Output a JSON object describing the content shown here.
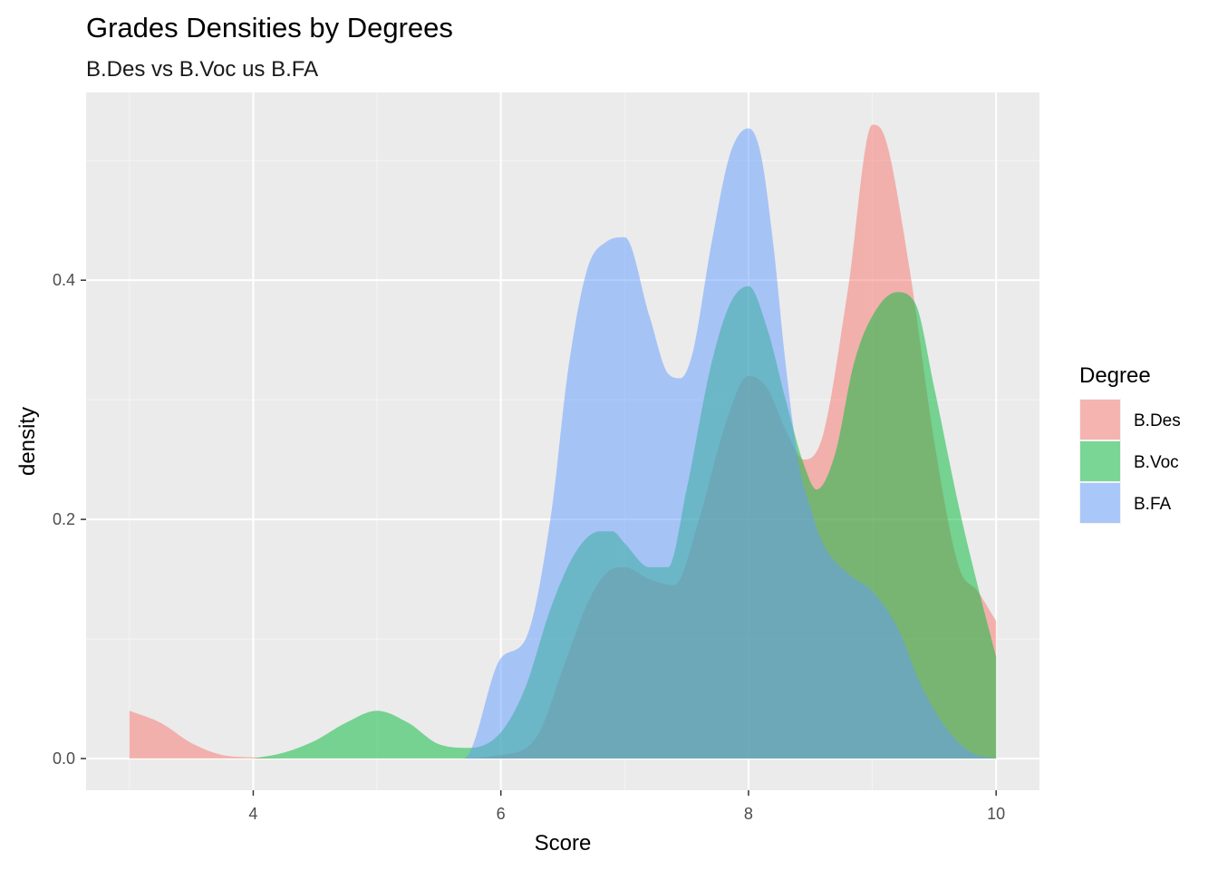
{
  "chart_data": {
    "type": "area",
    "subtype": "density",
    "title": "Grades Densities by Degrees",
    "subtitle": "B.Des vs B.Voc us B.FA",
    "xlabel": "Score",
    "ylabel": "density",
    "xlim": [
      2.65,
      10.35
    ],
    "ylim": [
      -0.0265,
      0.557
    ],
    "x_ticks": [
      4,
      6,
      8,
      10
    ],
    "x_tick_labels": [
      "4",
      "6",
      "8",
      "10"
    ],
    "y_ticks": [
      0.0,
      0.2,
      0.4
    ],
    "y_tick_labels": [
      "0.0",
      "0.2",
      "0.4"
    ],
    "grid": true,
    "legend": {
      "title": "Degree",
      "position": "right"
    },
    "series": [
      {
        "name": "B.Des",
        "color": "#F8766D",
        "alpha": 0.5,
        "x": [
          3.0,
          3.25,
          3.5,
          3.75,
          4.0,
          4.5,
          5.0,
          5.5,
          6.0,
          6.3,
          6.5,
          6.7,
          6.85,
          7.0,
          7.2,
          7.4,
          7.6,
          7.8,
          8.0,
          8.15,
          8.3,
          8.45,
          8.6,
          8.8,
          9.0,
          9.1,
          9.3,
          9.5,
          9.7,
          9.85,
          10.0
        ],
        "y": [
          0.04,
          0.03,
          0.013,
          0.003,
          0.001,
          0.0,
          0.0,
          0.0,
          0.003,
          0.02,
          0.075,
          0.13,
          0.155,
          0.16,
          0.15,
          0.145,
          0.2,
          0.275,
          0.32,
          0.31,
          0.275,
          0.25,
          0.27,
          0.39,
          0.53,
          0.52,
          0.41,
          0.265,
          0.16,
          0.14,
          0.115
        ]
      },
      {
        "name": "B.Voc",
        "color": "#00BA38",
        "alpha": 0.5,
        "x": [
          4.0,
          4.25,
          4.5,
          4.75,
          5.0,
          5.25,
          5.5,
          5.75,
          6.0,
          6.2,
          6.4,
          6.6,
          6.8,
          6.9,
          7.0,
          7.2,
          7.35,
          7.5,
          7.7,
          7.85,
          8.0,
          8.15,
          8.3,
          8.45,
          8.55,
          8.7,
          8.85,
          9.0,
          9.2,
          9.35,
          9.5,
          9.7,
          9.85,
          10.0
        ],
        "y": [
          0.0,
          0.005,
          0.015,
          0.03,
          0.04,
          0.03,
          0.012,
          0.009,
          0.022,
          0.06,
          0.125,
          0.172,
          0.19,
          0.19,
          0.18,
          0.16,
          0.16,
          0.225,
          0.33,
          0.38,
          0.395,
          0.36,
          0.3,
          0.245,
          0.225,
          0.255,
          0.33,
          0.37,
          0.39,
          0.38,
          0.31,
          0.21,
          0.145,
          0.085
        ]
      },
      {
        "name": "B.FA",
        "color": "#619CFF",
        "alpha": 0.5,
        "x": [
          5.0,
          5.25,
          5.5,
          5.7,
          6.0,
          6.2,
          6.4,
          6.55,
          6.7,
          6.85,
          7.0,
          7.2,
          7.35,
          7.45,
          7.55,
          7.7,
          7.85,
          8.0,
          8.1,
          8.2,
          8.3,
          8.4,
          8.5,
          8.6,
          8.8,
          9.0,
          9.2,
          9.4,
          9.6,
          9.8,
          10.0
        ],
        "y": [
          0.0,
          0.0,
          0.0,
          0.0,
          0.084,
          0.1,
          0.2,
          0.33,
          0.41,
          0.432,
          0.436,
          0.37,
          0.322,
          0.318,
          0.34,
          0.43,
          0.505,
          0.527,
          0.505,
          0.43,
          0.33,
          0.25,
          0.21,
          0.18,
          0.155,
          0.14,
          0.11,
          0.06,
          0.025,
          0.005,
          0.0
        ]
      }
    ]
  }
}
